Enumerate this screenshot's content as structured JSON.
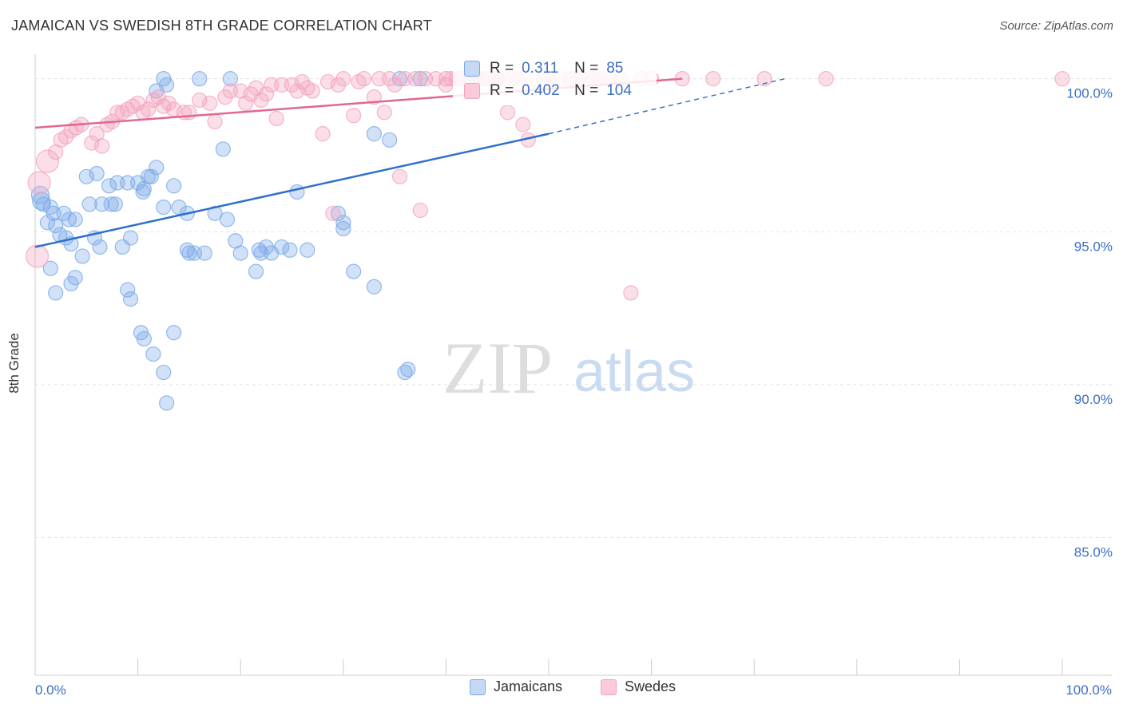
{
  "title": "JAMAICAN VS SWEDISH 8TH GRADE CORRELATION CHART",
  "source": "Source: ZipAtlas.com",
  "colors": {
    "blue": "#7aaae8",
    "blue_line": "#2f6fcb",
    "pink": "#f4a3bd",
    "pink_line": "#e0688f",
    "axis_text": "#3b6fc4",
    "grid": "#e3e3e3"
  },
  "watermark": {
    "zip": "ZIP",
    "atlas": "atlas"
  },
  "stats": {
    "jamaicans": {
      "r_label": "R =",
      "r": "0.311",
      "n_label": "N =",
      "n": "85"
    },
    "swedes": {
      "r_label": "R =",
      "r": "0.402",
      "n_label": "N =",
      "n": "104"
    }
  },
  "chart_data": {
    "type": "scatter",
    "title": "JAMAICAN VS SWEDISH 8TH GRADE CORRELATION CHART",
    "xlabel": "",
    "ylabel": "8th Grade",
    "xlim": [
      0,
      100
    ],
    "ylim": [
      80.5,
      100.8
    ],
    "x_tick_labels": [
      "0.0%",
      "100.0%"
    ],
    "y_ticks": [
      85,
      90,
      95,
      100
    ],
    "y_tick_labels": [
      "85.0%",
      "90.0%",
      "95.0%",
      "100.0%"
    ],
    "legend": [
      "Jamaicans",
      "Swedes"
    ],
    "series": [
      {
        "name": "Jamaicans",
        "trend": {
          "x0": 0,
          "y0": 94.5,
          "x1": 50,
          "y1": 98.2,
          "x_dash_end": 73,
          "y_dash_end": 100.0
        },
        "points": [
          [
            0.5,
            96.2
          ],
          [
            0.6,
            96.0
          ],
          [
            0.8,
            95.9
          ],
          [
            1.2,
            95.3
          ],
          [
            1.5,
            95.8
          ],
          [
            1.8,
            95.6
          ],
          [
            2.0,
            95.2
          ],
          [
            2.4,
            94.9
          ],
          [
            2.8,
            95.6
          ],
          [
            3.0,
            94.8
          ],
          [
            3.3,
            95.4
          ],
          [
            3.5,
            94.6
          ],
          [
            3.9,
            95.4
          ],
          [
            4.6,
            94.2
          ],
          [
            5.0,
            96.8
          ],
          [
            5.3,
            95.9
          ],
          [
            5.8,
            94.8
          ],
          [
            6.0,
            96.9
          ],
          [
            6.3,
            94.5
          ],
          [
            6.5,
            95.9
          ],
          [
            7.2,
            96.5
          ],
          [
            7.4,
            95.9
          ],
          [
            7.8,
            95.9
          ],
          [
            8.0,
            96.6
          ],
          [
            8.5,
            94.5
          ],
          [
            9.0,
            96.6
          ],
          [
            9.3,
            94.8
          ],
          [
            10.0,
            96.6
          ],
          [
            10.5,
            96.3
          ],
          [
            10.6,
            96.4
          ],
          [
            11.0,
            96.8
          ],
          [
            11.3,
            96.8
          ],
          [
            11.8,
            97.1
          ],
          [
            12.5,
            95.8
          ],
          [
            13.5,
            96.5
          ],
          [
            14.8,
            95.6
          ],
          [
            14.8,
            94.4
          ],
          [
            15.5,
            94.3
          ],
          [
            16.5,
            94.3
          ],
          [
            17.5,
            95.6
          ],
          [
            18.3,
            97.7
          ],
          [
            18.7,
            95.4
          ],
          [
            19.5,
            94.7
          ],
          [
            20.0,
            94.3
          ],
          [
            23.0,
            94.3
          ],
          [
            24.0,
            94.5
          ],
          [
            25.5,
            96.3
          ],
          [
            26.5,
            94.4
          ],
          [
            29.5,
            95.6
          ],
          [
            30.0,
            95.3
          ],
          [
            30.0,
            95.1
          ],
          [
            31.0,
            93.7
          ],
          [
            33.0,
            93.2
          ],
          [
            33.0,
            98.2
          ],
          [
            34.5,
            98.0
          ],
          [
            36.0,
            90.4
          ],
          [
            36.3,
            90.5
          ],
          [
            35.5,
            100.0
          ],
          [
            37.5,
            100.0
          ],
          [
            43.0,
            100.0
          ],
          [
            45.0,
            100.0
          ],
          [
            12.5,
            100.0
          ],
          [
            16.0,
            100.0
          ],
          [
            19.0,
            100.0
          ],
          [
            1.5,
            93.8
          ],
          [
            2.0,
            93.0
          ],
          [
            3.5,
            93.3
          ],
          [
            3.9,
            93.5
          ],
          [
            9.0,
            93.1
          ],
          [
            9.3,
            92.8
          ],
          [
            10.3,
            91.7
          ],
          [
            10.6,
            91.5
          ],
          [
            11.5,
            91.0
          ],
          [
            12.5,
            90.4
          ],
          [
            12.8,
            89.4
          ],
          [
            13.5,
            91.7
          ],
          [
            15.0,
            94.3
          ],
          [
            21.5,
            93.7
          ],
          [
            21.8,
            94.4
          ],
          [
            22.0,
            94.3
          ],
          [
            22.5,
            94.5
          ],
          [
            14.0,
            95.8
          ],
          [
            24.8,
            94.4
          ],
          [
            12.8,
            99.8
          ],
          [
            11.8,
            99.6
          ]
        ]
      },
      {
        "name": "Swedes",
        "trend": {
          "x0": 0,
          "y0": 98.4,
          "x1": 63,
          "y1": 100.0
        },
        "points": [
          [
            0.2,
            94.2
          ],
          [
            0.4,
            96.6
          ],
          [
            1.2,
            97.3
          ],
          [
            2.0,
            97.6
          ],
          [
            2.5,
            98.0
          ],
          [
            3.0,
            98.1
          ],
          [
            3.5,
            98.3
          ],
          [
            4.0,
            98.4
          ],
          [
            4.5,
            98.5
          ],
          [
            5.5,
            97.9
          ],
          [
            6.0,
            98.2
          ],
          [
            6.5,
            97.8
          ],
          [
            7.0,
            98.5
          ],
          [
            7.5,
            98.6
          ],
          [
            8.0,
            98.9
          ],
          [
            8.5,
            98.9
          ],
          [
            9.0,
            99.0
          ],
          [
            9.5,
            99.1
          ],
          [
            10.0,
            99.2
          ],
          [
            10.5,
            98.9
          ],
          [
            11.0,
            99.0
          ],
          [
            11.5,
            99.3
          ],
          [
            12.0,
            99.4
          ],
          [
            12.5,
            99.1
          ],
          [
            13.0,
            99.2
          ],
          [
            13.5,
            99.0
          ],
          [
            14.5,
            98.9
          ],
          [
            15.0,
            98.9
          ],
          [
            16.0,
            99.3
          ],
          [
            17.0,
            99.2
          ],
          [
            17.5,
            98.6
          ],
          [
            18.5,
            99.4
          ],
          [
            19.0,
            99.6
          ],
          [
            20.0,
            99.6
          ],
          [
            20.5,
            99.2
          ],
          [
            21.0,
            99.5
          ],
          [
            21.5,
            99.7
          ],
          [
            22.0,
            99.3
          ],
          [
            22.5,
            99.5
          ],
          [
            23.0,
            99.8
          ],
          [
            23.5,
            98.7
          ],
          [
            24.0,
            99.8
          ],
          [
            25.0,
            99.8
          ],
          [
            25.5,
            99.6
          ],
          [
            26.0,
            99.9
          ],
          [
            26.5,
            99.7
          ],
          [
            27.0,
            99.6
          ],
          [
            28.0,
            98.2
          ],
          [
            28.5,
            99.9
          ],
          [
            29.0,
            95.6
          ],
          [
            29.5,
            99.8
          ],
          [
            30.0,
            100.0
          ],
          [
            31.0,
            98.8
          ],
          [
            31.5,
            99.9
          ],
          [
            32.0,
            100.0
          ],
          [
            33.0,
            99.4
          ],
          [
            33.5,
            100.0
          ],
          [
            34.0,
            98.9
          ],
          [
            34.5,
            100.0
          ],
          [
            35.0,
            99.8
          ],
          [
            35.5,
            96.8
          ],
          [
            36.0,
            100.0
          ],
          [
            37.0,
            100.0
          ],
          [
            37.5,
            95.7
          ],
          [
            38.0,
            100.0
          ],
          [
            39.0,
            100.0
          ],
          [
            40.0,
            99.8
          ],
          [
            40.5,
            100.0
          ],
          [
            41.0,
            100.0
          ],
          [
            42.0,
            100.0
          ],
          [
            42.5,
            100.0
          ],
          [
            43.5,
            100.0
          ],
          [
            44.0,
            100.0
          ],
          [
            45.0,
            100.0
          ],
          [
            46.0,
            98.9
          ],
          [
            46.5,
            100.0
          ],
          [
            47.0,
            100.0
          ],
          [
            47.5,
            98.5
          ],
          [
            48.0,
            98.0
          ],
          [
            50.0,
            100.0
          ],
          [
            51.0,
            100.0
          ],
          [
            52.0,
            100.0
          ],
          [
            53.0,
            100.0
          ],
          [
            54.0,
            100.0
          ],
          [
            55.0,
            100.0
          ],
          [
            56.0,
            100.0
          ],
          [
            57.0,
            100.0
          ],
          [
            58.0,
            93.0
          ],
          [
            59.0,
            100.0
          ],
          [
            60.0,
            100.0
          ],
          [
            63.0,
            100.0
          ],
          [
            66.0,
            100.0
          ],
          [
            71.0,
            100.0
          ],
          [
            77.0,
            100.0
          ],
          [
            100.0,
            100.0
          ],
          [
            40.0,
            100.0
          ],
          [
            41.5,
            100.0
          ],
          [
            43.0,
            100.0
          ],
          [
            44.5,
            100.0
          ],
          [
            45.5,
            100.0
          ],
          [
            48.5,
            100.0
          ],
          [
            49.5,
            100.0
          ],
          [
            52.5,
            100.0
          ],
          [
            54.5,
            100.0
          ]
        ]
      }
    ]
  }
}
